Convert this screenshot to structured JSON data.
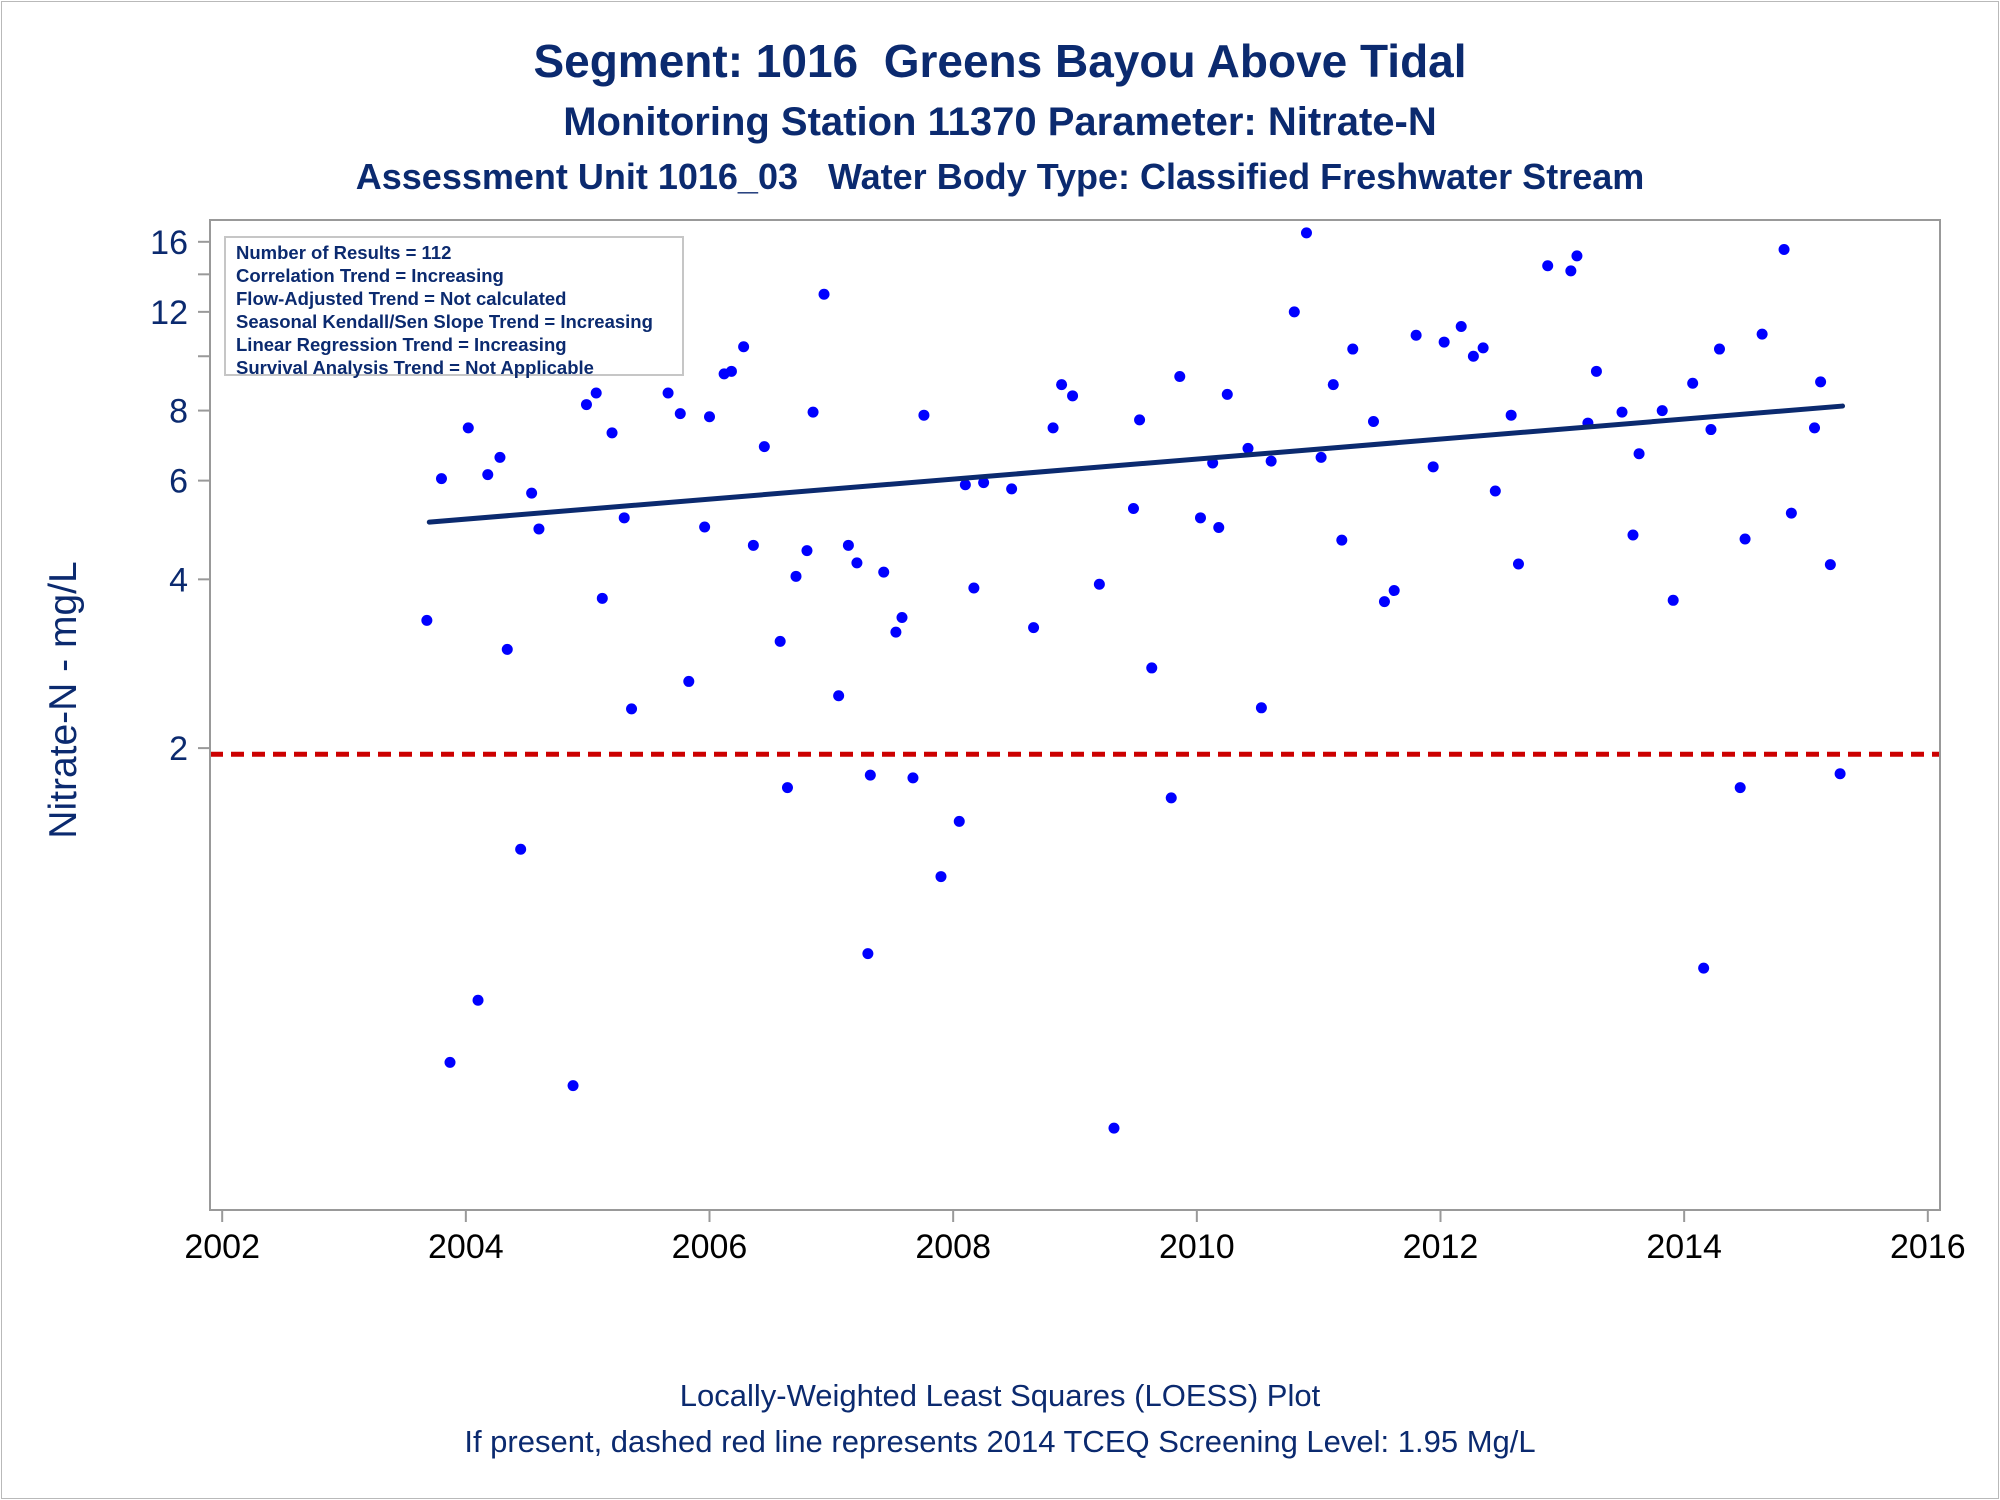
{
  "titles": {
    "line1": "Segment: 1016  Greens Bayou Above Tidal",
    "line2": "Monitoring Station 11370 Parameter: Nitrate-N",
    "line3": "Assessment Unit 1016_03   Water Body Type: Classified Freshwater Stream"
  },
  "footnotes": {
    "line1": "Locally-Weighted Least Squares (LOESS) Plot",
    "line2": "If present, dashed red line represents 2014 TCEQ Screening Level: 1.95 Mg/L"
  },
  "legend": [
    "Number of Results = 112",
    "Correlation Trend = Increasing",
    "Flow-Adjusted Trend = Not calculated",
    "Seasonal Kendall/Sen Slope Trend = Increasing",
    "Linear Regression Trend = Increasing",
    "Survival Analysis Trend = Not Applicable"
  ],
  "chart_data": {
    "type": "scatter",
    "ylabel": "Nitrate-N - mg/L",
    "y_scale": "log",
    "xlim": [
      2001.9,
      2016.1
    ],
    "ylim": [
      0.3,
      17.5
    ],
    "x_ticks": [
      2002,
      2004,
      2006,
      2008,
      2010,
      2012,
      2014,
      2016
    ],
    "y_ticks": [
      2,
      4,
      6,
      8,
      12,
      16
    ],
    "y_minor_ticks": [
      10,
      14
    ],
    "grid": false,
    "colors": {
      "points": "#0000ff",
      "trend": "#0b2a6f",
      "screening": "#cc0000",
      "text": "#0b2a6f",
      "axis": "#999999"
    },
    "screening_level": 1.95,
    "trend_line": {
      "x": [
        2003.7,
        2015.3
      ],
      "y": [
        5.06,
        8.15
      ]
    },
    "points": [
      [
        2003.68,
        3.38
      ],
      [
        2003.8,
        6.05
      ],
      [
        2003.87,
        0.55
      ],
      [
        2003.92,
        9.6
      ],
      [
        2004.02,
        7.45
      ],
      [
        2004.1,
        0.71
      ],
      [
        2004.18,
        6.15
      ],
      [
        2004.28,
        6.6
      ],
      [
        2004.34,
        3.0
      ],
      [
        2004.45,
        1.32
      ],
      [
        2004.54,
        5.7
      ],
      [
        2004.6,
        4.92
      ],
      [
        2004.74,
        11.2
      ],
      [
        2004.81,
        10.8
      ],
      [
        2004.88,
        0.5
      ],
      [
        2004.99,
        8.2
      ],
      [
        2005.07,
        8.6
      ],
      [
        2005.12,
        3.7
      ],
      [
        2005.2,
        7.3
      ],
      [
        2005.3,
        5.15
      ],
      [
        2005.36,
        2.35
      ],
      [
        2005.66,
        8.6
      ],
      [
        2005.76,
        7.9
      ],
      [
        2005.83,
        2.63
      ],
      [
        2005.96,
        4.96
      ],
      [
        2006.0,
        7.8
      ],
      [
        2006.12,
        9.3
      ],
      [
        2006.18,
        9.4
      ],
      [
        2006.28,
        10.4
      ],
      [
        2006.36,
        4.6
      ],
      [
        2006.45,
        6.9
      ],
      [
        2006.58,
        3.1
      ],
      [
        2006.64,
        1.7
      ],
      [
        2006.71,
        4.05
      ],
      [
        2006.8,
        4.5
      ],
      [
        2006.85,
        7.95
      ],
      [
        2006.94,
        12.9
      ],
      [
        2007.06,
        2.48
      ],
      [
        2007.14,
        4.6
      ],
      [
        2007.21,
        4.28
      ],
      [
        2007.3,
        0.86
      ],
      [
        2007.32,
        1.79
      ],
      [
        2007.43,
        4.12
      ],
      [
        2007.53,
        3.22
      ],
      [
        2007.58,
        3.42
      ],
      [
        2007.67,
        1.77
      ],
      [
        2007.76,
        7.85
      ],
      [
        2007.9,
        1.18
      ],
      [
        2008.05,
        1.48
      ],
      [
        2008.1,
        5.9
      ],
      [
        2008.17,
        3.86
      ],
      [
        2008.25,
        5.95
      ],
      [
        2008.48,
        5.8
      ],
      [
        2008.66,
        3.28
      ],
      [
        2008.82,
        7.45
      ],
      [
        2008.89,
        8.9
      ],
      [
        2008.98,
        8.5
      ],
      [
        2009.2,
        3.92
      ],
      [
        2009.32,
        0.42
      ],
      [
        2009.48,
        5.35
      ],
      [
        2009.53,
        7.7
      ],
      [
        2009.63,
        2.78
      ],
      [
        2009.79,
        1.63
      ],
      [
        2009.86,
        9.2
      ],
      [
        2010.03,
        5.15
      ],
      [
        2010.13,
        6.45
      ],
      [
        2010.18,
        4.95
      ],
      [
        2010.25,
        8.55
      ],
      [
        2010.42,
        6.85
      ],
      [
        2010.53,
        2.36
      ],
      [
        2010.61,
        6.5
      ],
      [
        2010.8,
        12.0
      ],
      [
        2010.9,
        16.6
      ],
      [
        2011.02,
        6.6
      ],
      [
        2011.12,
        8.9
      ],
      [
        2011.19,
        4.7
      ],
      [
        2011.28,
        10.3
      ],
      [
        2011.45,
        7.65
      ],
      [
        2011.54,
        3.65
      ],
      [
        2011.62,
        3.82
      ],
      [
        2011.8,
        10.9
      ],
      [
        2011.94,
        6.35
      ],
      [
        2012.03,
        10.6
      ],
      [
        2012.17,
        11.3
      ],
      [
        2012.27,
        10.0
      ],
      [
        2012.35,
        10.35
      ],
      [
        2012.45,
        5.75
      ],
      [
        2012.58,
        7.85
      ],
      [
        2012.64,
        4.26
      ],
      [
        2012.88,
        14.5
      ],
      [
        2013.07,
        14.2
      ],
      [
        2013.12,
        15.1
      ],
      [
        2013.21,
        7.6
      ],
      [
        2013.28,
        9.4
      ],
      [
        2013.49,
        7.95
      ],
      [
        2013.58,
        4.8
      ],
      [
        2013.63,
        6.7
      ],
      [
        2013.82,
        8.0
      ],
      [
        2013.91,
        3.67
      ],
      [
        2014.07,
        8.95
      ],
      [
        2014.16,
        0.81
      ],
      [
        2014.22,
        7.4
      ],
      [
        2014.29,
        10.3
      ],
      [
        2014.46,
        1.7
      ],
      [
        2014.5,
        4.72
      ],
      [
        2014.64,
        10.95
      ],
      [
        2014.82,
        15.5
      ],
      [
        2014.88,
        5.25
      ],
      [
        2015.07,
        7.45
      ],
      [
        2015.12,
        9.0
      ],
      [
        2015.2,
        4.25
      ],
      [
        2015.28,
        1.8
      ]
    ]
  }
}
